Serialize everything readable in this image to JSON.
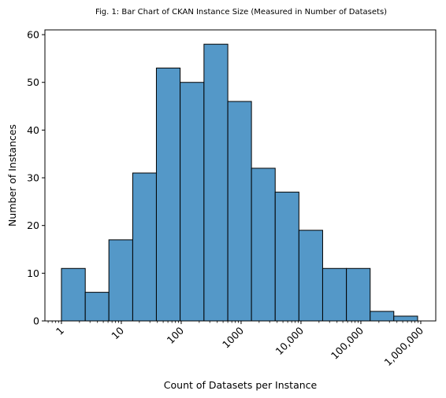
{
  "chart_data": {
    "type": "bar",
    "title": "Fig. 1: Bar Chart of CKAN Instance Size (Measured in Number of Datasets)",
    "xlabel": "Count of Datasets per Instance",
    "ylabel": "Number of Instances",
    "x_scale": "log",
    "x_range": [
      0.53,
      1780000
    ],
    "ylim": [
      0,
      61
    ],
    "x_ticks": [
      1,
      10,
      100,
      1000,
      10000,
      100000,
      1000000
    ],
    "x_tick_labels": [
      "1",
      "10",
      "100",
      "1000",
      "10,000",
      "100,000",
      "1,000,000"
    ],
    "y_ticks": [
      0,
      10,
      20,
      30,
      40,
      50,
      60
    ],
    "y_tick_labels": [
      "0",
      "10",
      "20",
      "30",
      "40",
      "50",
      "60"
    ],
    "bin_edges": [
      1,
      2.5,
      6.2,
      15.5,
      38.5,
      96,
      240,
      600,
      1490,
      3710,
      9240,
      23000,
      57400,
      143000,
      355000,
      886000
    ],
    "values": [
      11,
      6,
      17,
      31,
      53,
      50,
      58,
      46,
      32,
      27,
      19,
      11,
      11,
      2,
      1,
      1
    ],
    "bar_color": "#5498c8",
    "edge_color": "#000000",
    "grid": false,
    "legend": "none"
  }
}
